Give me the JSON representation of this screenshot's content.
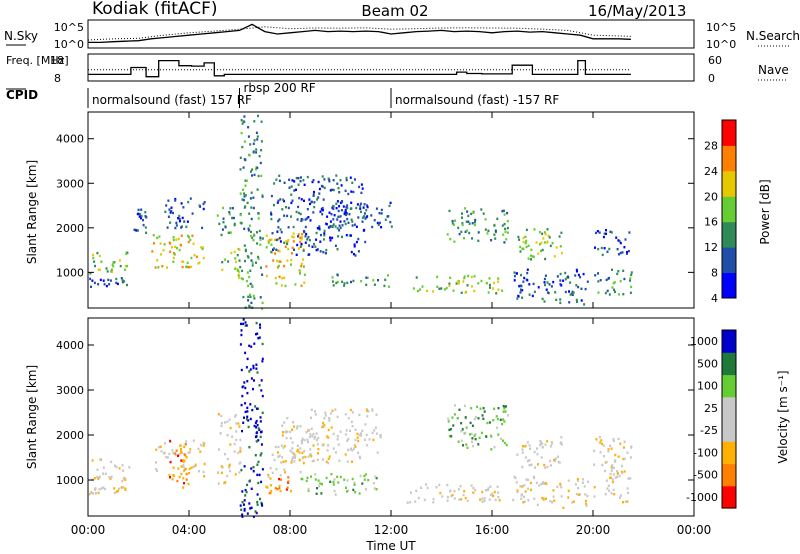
{
  "header": {
    "station": "Kodiak (fitACF)",
    "beam": "Beam 02",
    "date": "16/May/2013"
  },
  "chart_data": [
    {
      "type": "line",
      "panel": "noise",
      "left_label": "N.Sky",
      "right_label": "N.Search",
      "left_ticks": [
        "10^5",
        "10^0"
      ],
      "right_ticks": [
        "10^5",
        "10^0"
      ],
      "series": [
        {
          "name": "N.Sky",
          "style": "solid",
          "x": [
            0,
            0.5,
            1,
            1.5,
            2,
            2.5,
            3,
            3.5,
            4,
            4.5,
            5,
            5.5,
            6,
            6.5,
            7,
            7.5,
            8,
            8.5,
            9,
            9.5,
            10,
            10.5,
            11,
            11.5,
            12,
            12.5,
            13,
            13.5,
            14,
            14.5,
            15,
            15.5,
            16,
            16.5,
            17,
            17.5,
            18,
            18.5,
            19,
            19.5,
            20,
            20.5,
            21,
            21.5
          ],
          "y": [
            0.15,
            0.15,
            0.18,
            0.2,
            0.22,
            0.3,
            0.35,
            0.4,
            0.45,
            0.5,
            0.55,
            0.6,
            0.65,
            0.9,
            0.6,
            0.5,
            0.55,
            0.6,
            0.65,
            0.6,
            0.62,
            0.6,
            0.62,
            0.6,
            0.5,
            0.55,
            0.6,
            0.62,
            0.65,
            0.6,
            0.62,
            0.6,
            0.55,
            0.6,
            0.62,
            0.58,
            0.6,
            0.55,
            0.5,
            0.45,
            0.3,
            0.3,
            0.3,
            0.28
          ]
        },
        {
          "name": "N.Search",
          "style": "dotted",
          "x": [
            0,
            1,
            2,
            3,
            4,
            5,
            6,
            7,
            8,
            9,
            10,
            11,
            12,
            13,
            14,
            15,
            16,
            17,
            18,
            19,
            20,
            21,
            21.5
          ],
          "y": [
            0.25,
            0.3,
            0.32,
            0.45,
            0.55,
            0.62,
            0.7,
            0.8,
            0.72,
            0.75,
            0.74,
            0.76,
            0.7,
            0.72,
            0.75,
            0.76,
            0.75,
            0.74,
            0.7,
            0.65,
            0.45,
            0.42,
            0.4
          ]
        }
      ]
    },
    {
      "type": "line",
      "panel": "frequency",
      "left_label": "Freq. [MHz]",
      "right_label": "Nave",
      "left_ticks": [
        "18",
        "8"
      ],
      "right_ticks": [
        "60",
        "0"
      ],
      "series": [
        {
          "name": "Freq.",
          "style": "solid",
          "x": [
            0,
            1.7,
            1.7,
            2.3,
            2.3,
            2.8,
            2.8,
            3.6,
            3.6,
            4.1,
            4.1,
            4.6,
            4.6,
            5.0,
            5.0,
            5.4,
            5.4,
            6.9,
            6.9,
            12,
            12,
            14.6,
            14.6,
            15.0,
            15.0,
            15.6,
            15.6,
            16.8,
            16.8,
            17.6,
            17.6,
            19.4,
            19.4,
            19.7,
            19.7,
            21.5
          ],
          "y": [
            10,
            10,
            13,
            13,
            9,
            9,
            16,
            16,
            13.8,
            13.8,
            13.6,
            13.6,
            15,
            15,
            9.4,
            9.4,
            10,
            10,
            10,
            10,
            10,
            10,
            11,
            11,
            10.4,
            10.4,
            10.2,
            10.2,
            14,
            14,
            10,
            10,
            16,
            16,
            10,
            10
          ]
        },
        {
          "name": "Nave",
          "style": "dotted",
          "x": [
            0,
            6.8,
            6.8,
            21.5
          ],
          "y": [
            12,
            12,
            12,
            12
          ]
        }
      ]
    },
    {
      "type": "table",
      "panel": "cpid",
      "label": "CPID",
      "segments": [
        {
          "label": "normalsound (fast) 157 RF",
          "start": 0,
          "end": 6.0
        },
        {
          "label": "rbsp 200 RF",
          "start": 6.0,
          "end": 12.0
        },
        {
          "label": "normalsound (fast) -157 RF",
          "start": 12.0,
          "end": 21.5
        }
      ]
    },
    {
      "type": "heatmap",
      "panel": "power",
      "ylabel": "Slant Range [km]",
      "yticks": [
        "4000",
        "3000",
        "2000",
        "1000"
      ],
      "ylim": [
        200,
        4600
      ],
      "colorbar_label": "Power [dB]",
      "colorbar_ticks": [
        "28",
        "24",
        "20",
        "16",
        "12",
        "8",
        "4"
      ],
      "colors": [
        "#0000ff",
        "#1f4fa8",
        "#2e8b57",
        "#66cc33",
        "#e6c800",
        "#ff8000",
        "#ff0000"
      ],
      "clusters": [
        {
          "t0": 0.0,
          "t1": 1.6,
          "r0": 1000,
          "r1": 1500,
          "lvl": 3
        },
        {
          "t0": 0.0,
          "t1": 1.7,
          "r0": 700,
          "r1": 900,
          "lvl": 1
        },
        {
          "t0": 1.8,
          "t1": 2.3,
          "r0": 1900,
          "r1": 2500,
          "lvl": 1
        },
        {
          "t0": 2.5,
          "t1": 4.6,
          "r0": 1100,
          "r1": 1900,
          "lvl": 4
        },
        {
          "t0": 3.0,
          "t1": 4.6,
          "r0": 2000,
          "r1": 2700,
          "lvl": 1
        },
        {
          "t0": 5.1,
          "t1": 5.8,
          "r0": 1800,
          "r1": 2500,
          "lvl": 2
        },
        {
          "t0": 5.2,
          "t1": 6.0,
          "r0": 900,
          "r1": 1600,
          "lvl": 3
        },
        {
          "t0": 6.0,
          "t1": 6.9,
          "r0": 200,
          "r1": 4600,
          "lvl": 2
        },
        {
          "t0": 7.0,
          "t1": 8.6,
          "r0": 700,
          "r1": 1900,
          "lvl": 4
        },
        {
          "t0": 7.2,
          "t1": 11.0,
          "r0": 1400,
          "r1": 3200,
          "lvl": 1
        },
        {
          "t0": 9.0,
          "t1": 12.0,
          "r0": 2000,
          "r1": 2600,
          "lvl": 1
        },
        {
          "t0": 9.6,
          "t1": 12.0,
          "r0": 700,
          "r1": 1000,
          "lvl": 2
        },
        {
          "t0": 12.8,
          "t1": 16.4,
          "r0": 550,
          "r1": 950,
          "lvl": 3
        },
        {
          "t0": 14.2,
          "t1": 16.6,
          "r0": 1700,
          "r1": 2500,
          "lvl": 2
        },
        {
          "t0": 16.8,
          "t1": 18.8,
          "r0": 1300,
          "r1": 2000,
          "lvl": 3
        },
        {
          "t0": 16.8,
          "t1": 19.8,
          "r0": 300,
          "r1": 1100,
          "lvl": 1
        },
        {
          "t0": 20.0,
          "t1": 21.5,
          "r0": 1400,
          "r1": 2000,
          "lvl": 1
        },
        {
          "t0": 20.0,
          "t1": 21.5,
          "r0": 500,
          "r1": 1100,
          "lvl": 2
        }
      ]
    },
    {
      "type": "heatmap",
      "panel": "velocity",
      "ylabel": "Slant Range [km]",
      "yticks": [
        "4000",
        "3000",
        "2000",
        "1000"
      ],
      "ylim": [
        200,
        4600
      ],
      "xticks": [
        "00:00",
        "04:00",
        "08:00",
        "12:00",
        "16:00",
        "20:00",
        "00:00"
      ],
      "xlabel": "Time UT",
      "colorbar_label": "Velocity [m s⁻¹]",
      "colorbar_ticks": [
        "1000",
        "500",
        "100",
        "25",
        "-25",
        "-100",
        "-500",
        "-1000"
      ],
      "colors": [
        "#ff0000",
        "#ff7f00",
        "#ffb000",
        "#c8c8c8",
        "#c8c8c8",
        "#66cc33",
        "#1f7a3a",
        "#0000cc"
      ],
      "clusters": [
        {
          "t0": 0.0,
          "t1": 1.6,
          "r0": 1000,
          "r1": 1500,
          "lvl": 3
        },
        {
          "t0": 0.0,
          "t1": 1.7,
          "r0": 700,
          "r1": 900,
          "lvl": 3
        },
        {
          "t0": 2.6,
          "t1": 4.6,
          "r0": 1100,
          "r1": 1900,
          "lvl": 3
        },
        {
          "t0": 3.2,
          "t1": 4.0,
          "r0": 800,
          "r1": 1900,
          "lvl": 1
        },
        {
          "t0": 5.1,
          "t1": 6.0,
          "r0": 900,
          "r1": 2500,
          "lvl": 3
        },
        {
          "t0": 6.0,
          "t1": 6.9,
          "r0": 200,
          "r1": 4600,
          "lvl": 7
        },
        {
          "t0": 7.0,
          "t1": 8.2,
          "r0": 700,
          "r1": 1100,
          "lvl": 1
        },
        {
          "t0": 7.0,
          "t1": 8.4,
          "r0": 1100,
          "r1": 1800,
          "lvl": 3
        },
        {
          "t0": 8.4,
          "t1": 11.4,
          "r0": 700,
          "r1": 1200,
          "lvl": 5
        },
        {
          "t0": 7.6,
          "t1": 11.6,
          "r0": 1400,
          "r1": 2600,
          "lvl": 3
        },
        {
          "t0": 12.6,
          "t1": 16.4,
          "r0": 500,
          "r1": 950,
          "lvl": 3
        },
        {
          "t0": 14.2,
          "t1": 16.6,
          "r0": 1700,
          "r1": 2700,
          "lvl": 5
        },
        {
          "t0": 16.8,
          "t1": 18.8,
          "r0": 1300,
          "r1": 2000,
          "lvl": 3
        },
        {
          "t0": 16.8,
          "t1": 19.8,
          "r0": 400,
          "r1": 1100,
          "lvl": 3
        },
        {
          "t0": 20.0,
          "t1": 21.5,
          "r0": 500,
          "r1": 2000,
          "lvl": 3
        }
      ]
    }
  ]
}
